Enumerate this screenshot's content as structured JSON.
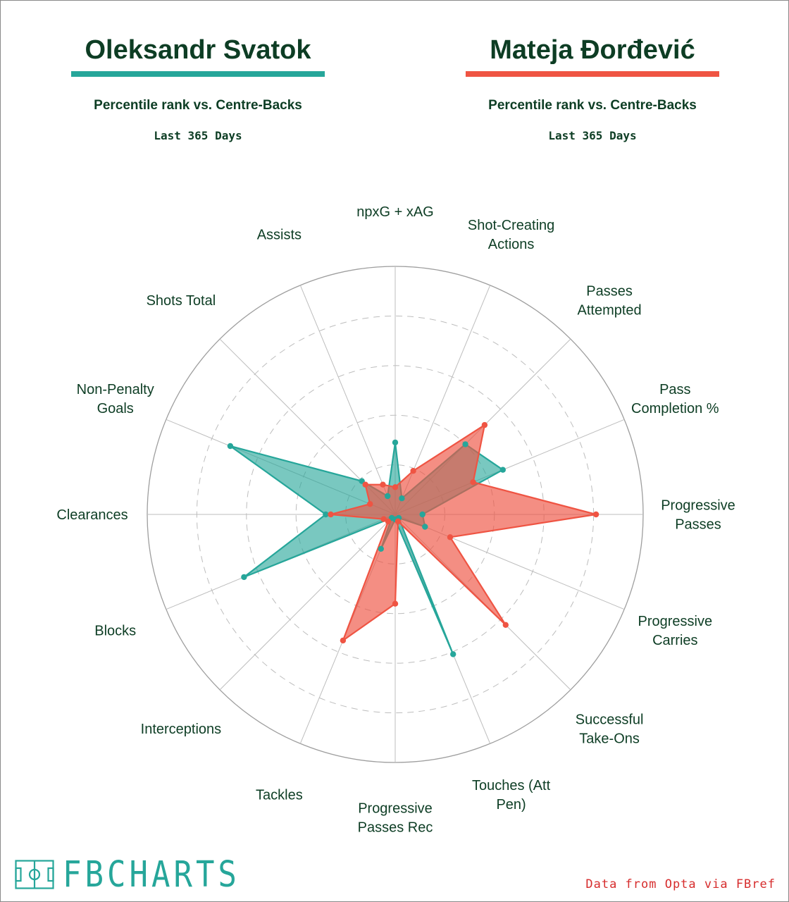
{
  "players": [
    {
      "name": "Oleksandr Svatok",
      "subtitle": "Percentile rank vs. Centre-Backs",
      "period": "Last 365 Days",
      "color": "#26a69a"
    },
    {
      "name": "Mateja Đorđević",
      "subtitle": "Percentile rank vs. Centre-Backs",
      "period": "Last 365 Days",
      "color": "#ef5443"
    }
  ],
  "colors": {
    "title": "#0d3d24",
    "grid": "#bdbdbd",
    "logo": "#26a69a",
    "source": "#d62c2c"
  },
  "chart_data": {
    "type": "radar",
    "range": [
      0,
      100
    ],
    "grid_rings": [
      20,
      40,
      60,
      80,
      100
    ],
    "categories": [
      [
        "npxG + xAG"
      ],
      [
        "Shot-Creating",
        "Actions"
      ],
      [
        "Passes",
        "Attempted"
      ],
      [
        "Pass",
        "Completion %"
      ],
      [
        "Progressive",
        "Passes"
      ],
      [
        "Progressive",
        "Carries"
      ],
      [
        "Successful",
        "Take-Ons"
      ],
      [
        "Touches (Att",
        "Pen)"
      ],
      [
        "Progressive",
        "Passes Rec"
      ],
      [
        "Tackles"
      ],
      [
        "Interceptions"
      ],
      [
        "Blocks"
      ],
      [
        "Clearances"
      ],
      [
        "Non-Penalty",
        "Goals"
      ],
      [
        "Shots Total"
      ],
      [
        "Assists"
      ]
    ],
    "series": [
      {
        "name": "Oleksandr Svatok",
        "values": [
          29,
          7,
          40,
          47,
          11,
          13,
          2,
          61,
          2,
          15,
          2,
          66,
          28,
          72,
          19,
          8
        ]
      },
      {
        "name": "Mateja Đorđević",
        "values": [
          11,
          19,
          51,
          34,
          81,
          24,
          63,
          3,
          36,
          55,
          4,
          5,
          26,
          11,
          17,
          13
        ]
      }
    ]
  },
  "logo": {
    "text": "FBCHARTS",
    "icon": "football-pitch-icon"
  },
  "source": "Data from Opta via FBref"
}
